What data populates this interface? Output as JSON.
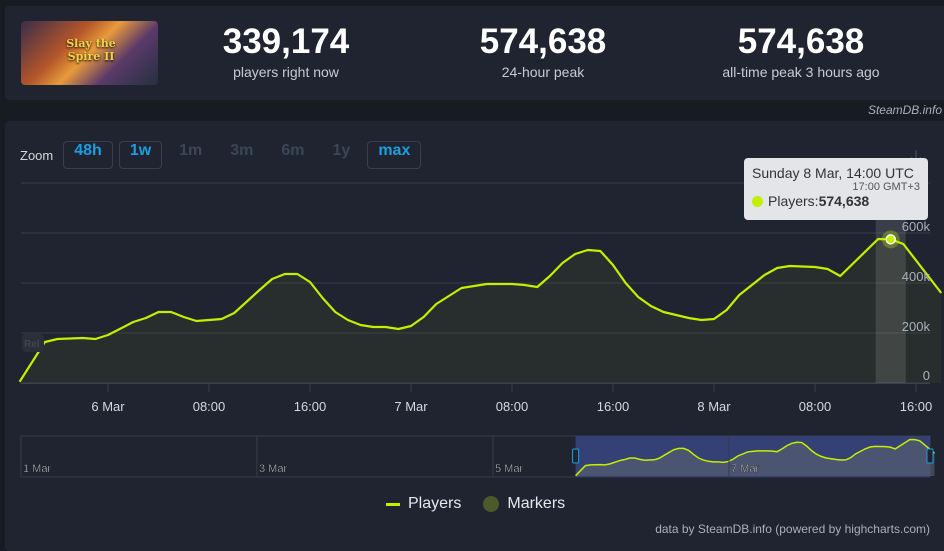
{
  "header": {
    "game_logo_text": "Slay the Spire II",
    "stats": [
      {
        "value": "339,174",
        "label": "players right now"
      },
      {
        "value": "574,638",
        "label": "24-hour peak"
      },
      {
        "value": "574,638",
        "label": "all-time peak 3 hours ago"
      }
    ],
    "source": "SteamDB.info"
  },
  "zoom": {
    "label": "Zoom",
    "buttons": [
      {
        "label": "48h",
        "active": true
      },
      {
        "label": "1w",
        "active": true
      },
      {
        "label": "1m",
        "active": false
      },
      {
        "label": "3m",
        "active": false
      },
      {
        "label": "6m",
        "active": false
      },
      {
        "label": "1y",
        "active": false
      },
      {
        "label": "max",
        "active": true
      }
    ]
  },
  "tooltip": {
    "date": "Sunday 8 Mar, 14:00 UTC",
    "local": "17:00 GMT+3",
    "series": "Players: ",
    "value": "574,638"
  },
  "legend": {
    "players": "Players",
    "markers": "Markers"
  },
  "footer": "data by SteamDB.info (powered by highcharts.com)",
  "colors": {
    "line": "#c4f000",
    "accent": "#1a9fe0",
    "background": "#1f2430"
  },
  "chart_data": {
    "type": "line",
    "title": "",
    "ylim": [
      0,
      800000
    ],
    "y_ticks": [
      "0",
      "200k",
      "400k",
      "600k"
    ],
    "x_ticks": [
      "6 Mar",
      "08:00",
      "16:00",
      "7 Mar",
      "08:00",
      "16:00",
      "8 Mar",
      "08:00",
      "16:00"
    ],
    "grid": true,
    "legend": "bottom",
    "flag_label": "Rel",
    "navigator_ticks": [
      "1 Mar",
      "3 Mar",
      "5 Mar",
      "7 Mar"
    ],
    "series": [
      {
        "name": "Players",
        "x": [
          "5 Mar 17:00",
          "5 Mar 19:00",
          "5 Mar 20:00",
          "5 Mar 22:00",
          "5 Mar 23:00",
          "6 Mar 00:00",
          "6 Mar 02:00",
          "6 Mar 03:00",
          "6 Mar 04:00",
          "6 Mar 05:00",
          "6 Mar 06:00",
          "6 Mar 07:00",
          "6 Mar 09:00",
          "6 Mar 10:00",
          "6 Mar 12:00",
          "6 Mar 13:00",
          "6 Mar 14:00",
          "6 Mar 15:00",
          "6 Mar 16:00",
          "6 Mar 17:00",
          "6 Mar 18:00",
          "6 Mar 19:00",
          "6 Mar 20:00",
          "6 Mar 21:00",
          "6 Mar 22:00",
          "6 Mar 23:00",
          "7 Mar 00:00",
          "7 Mar 01:00",
          "7 Mar 02:00",
          "7 Mar 04:00",
          "7 Mar 05:00",
          "7 Mar 06:00",
          "7 Mar 08:00",
          "7 Mar 09:00",
          "7 Mar 10:00",
          "7 Mar 11:00",
          "7 Mar 12:00",
          "7 Mar 13:00",
          "7 Mar 14:00",
          "7 Mar 15:00",
          "7 Mar 16:00",
          "7 Mar 17:00",
          "7 Mar 18:00",
          "7 Mar 19:00",
          "7 Mar 20:00",
          "7 Mar 21:00",
          "7 Mar 22:00",
          "7 Mar 23:00",
          "8 Mar 00:00",
          "8 Mar 01:00",
          "8 Mar 02:00",
          "8 Mar 04:00",
          "8 Mar 05:00",
          "8 Mar 06:00",
          "8 Mar 08:00",
          "8 Mar 09:00",
          "8 Mar 10:00",
          "8 Mar 13:00",
          "8 Mar 14:00",
          "8 Mar 15:00",
          "8 Mar 18:00"
        ],
        "values": [
          5000,
          164000,
          176000,
          180000,
          176000,
          192000,
          244000,
          260000,
          284000,
          284000,
          264000,
          248000,
          256000,
          280000,
          372000,
          416000,
          436000,
          436000,
          404000,
          340000,
          284000,
          252000,
          232000,
          224000,
          224000,
          216000,
          228000,
          264000,
          316000,
          380000,
          388000,
          396000,
          396000,
          392000,
          384000,
          428000,
          480000,
          516000,
          532000,
          528000,
          472000,
          400000,
          344000,
          308000,
          284000,
          272000,
          260000,
          252000,
          256000,
          292000,
          352000,
          432000,
          460000,
          468000,
          464000,
          456000,
          428000,
          576000,
          574638,
          556000,
          360000
        ]
      }
    ],
    "highlighted_point": {
      "x": "8 Mar 14:00",
      "value": 574638
    }
  }
}
